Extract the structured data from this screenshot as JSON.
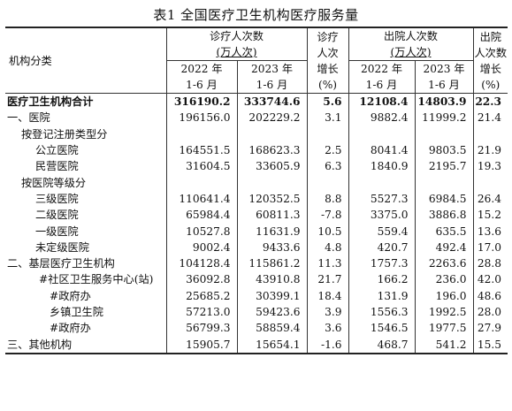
{
  "title": "表1  全国医疗卫生机构医疗服务量",
  "header": {
    "category": "机构分类",
    "visits_group": "诊疗人次数",
    "visits_unit": "(万人次)",
    "visits_growth_line1": "诊疗",
    "visits_growth_line2": "人次",
    "visits_growth_line3": "增长",
    "visits_growth_line4": "(%)",
    "inpatients_group": "出院人次数",
    "inpatients_unit": "(万人次)",
    "inpatients_growth_line1": "出院",
    "inpatients_growth_line2": "人次数",
    "inpatients_growth_line3": "增长",
    "inpatients_growth_line4": "(%)",
    "y2022_line1": "2022 年",
    "y2022_line2": "1-6 月",
    "y2023_line1": "2023 年",
    "y2023_line2": "1-6 月"
  },
  "rows": [
    {
      "label": "医疗卫生机构合计",
      "indent": 0,
      "bold": true,
      "v22": "316190.2",
      "v23": "333744.6",
      "vg": "5.6",
      "i22": "12108.4",
      "i23": "14803.9",
      "ig": "22.3"
    },
    {
      "label": "一、医院",
      "indent": 0,
      "bold": false,
      "v22": "196156.0",
      "v23": "202229.2",
      "vg": "3.1",
      "i22": "9882.4",
      "i23": "11999.2",
      "ig": "21.4"
    },
    {
      "label": "按登记注册类型分",
      "indent": 1,
      "bold": false,
      "v22": "",
      "v23": "",
      "vg": "",
      "i22": "",
      "i23": "",
      "ig": ""
    },
    {
      "label": "公立医院",
      "indent": 2,
      "bold": false,
      "v22": "164551.5",
      "v23": "168623.3",
      "vg": "2.5",
      "i22": "8041.4",
      "i23": "9803.5",
      "ig": "21.9"
    },
    {
      "label": "民营医院",
      "indent": 2,
      "bold": false,
      "v22": "31604.5",
      "v23": "33605.9",
      "vg": "6.3",
      "i22": "1840.9",
      "i23": "2195.7",
      "ig": "19.3"
    },
    {
      "label": "按医院等级分",
      "indent": 1,
      "bold": false,
      "v22": "",
      "v23": "",
      "vg": "",
      "i22": "",
      "i23": "",
      "ig": ""
    },
    {
      "label": "三级医院",
      "indent": 2,
      "bold": false,
      "v22": "110641.4",
      "v23": "120352.5",
      "vg": "8.8",
      "i22": "5527.3",
      "i23": "6984.5",
      "ig": "26.4"
    },
    {
      "label": "二级医院",
      "indent": 2,
      "bold": false,
      "v22": "65984.4",
      "v23": "60811.3",
      "vg": "-7.8",
      "i22": "3375.0",
      "i23": "3886.8",
      "ig": "15.2"
    },
    {
      "label": "一级医院",
      "indent": 2,
      "bold": false,
      "v22": "10527.8",
      "v23": "11631.9",
      "vg": "10.5",
      "i22": "559.4",
      "i23": "635.5",
      "ig": "13.6"
    },
    {
      "label": "未定级医院",
      "indent": 2,
      "bold": false,
      "v22": "9002.4",
      "v23": "9433.6",
      "vg": "4.8",
      "i22": "420.7",
      "i23": "492.4",
      "ig": "17.0"
    },
    {
      "label": "二、基层医疗卫生机构",
      "indent": 0,
      "bold": false,
      "v22": "104128.4",
      "v23": "115861.2",
      "vg": "11.3",
      "i22": "1757.3",
      "i23": "2263.6",
      "ig": "28.8"
    },
    {
      "label": "#社区卫生服务中心(站)",
      "indent": 3,
      "bold": false,
      "v22": "36092.8",
      "v23": "43910.8",
      "vg": "21.7",
      "i22": "166.2",
      "i23": "236.0",
      "ig": "42.0"
    },
    {
      "label": "#政府办",
      "indent": 4,
      "bold": false,
      "v22": "25685.2",
      "v23": "30399.1",
      "vg": "18.4",
      "i22": "131.9",
      "i23": "196.0",
      "ig": "48.6"
    },
    {
      "label": "乡镇卫生院",
      "indent": 4,
      "bold": false,
      "v22": "57213.0",
      "v23": "59423.6",
      "vg": "3.9",
      "i22": "1556.3",
      "i23": "1992.5",
      "ig": "28.0"
    },
    {
      "label": "#政府办",
      "indent": 4,
      "bold": false,
      "v22": "56799.3",
      "v23": "58859.4",
      "vg": "3.6",
      "i22": "1546.5",
      "i23": "1977.5",
      "ig": "27.9"
    },
    {
      "label": "三、其他机构",
      "indent": 0,
      "bold": false,
      "v22": "15905.7",
      "v23": "15654.1",
      "vg": "-1.6",
      "i22": "468.7",
      "i23": "541.2",
      "ig": "15.5"
    }
  ]
}
